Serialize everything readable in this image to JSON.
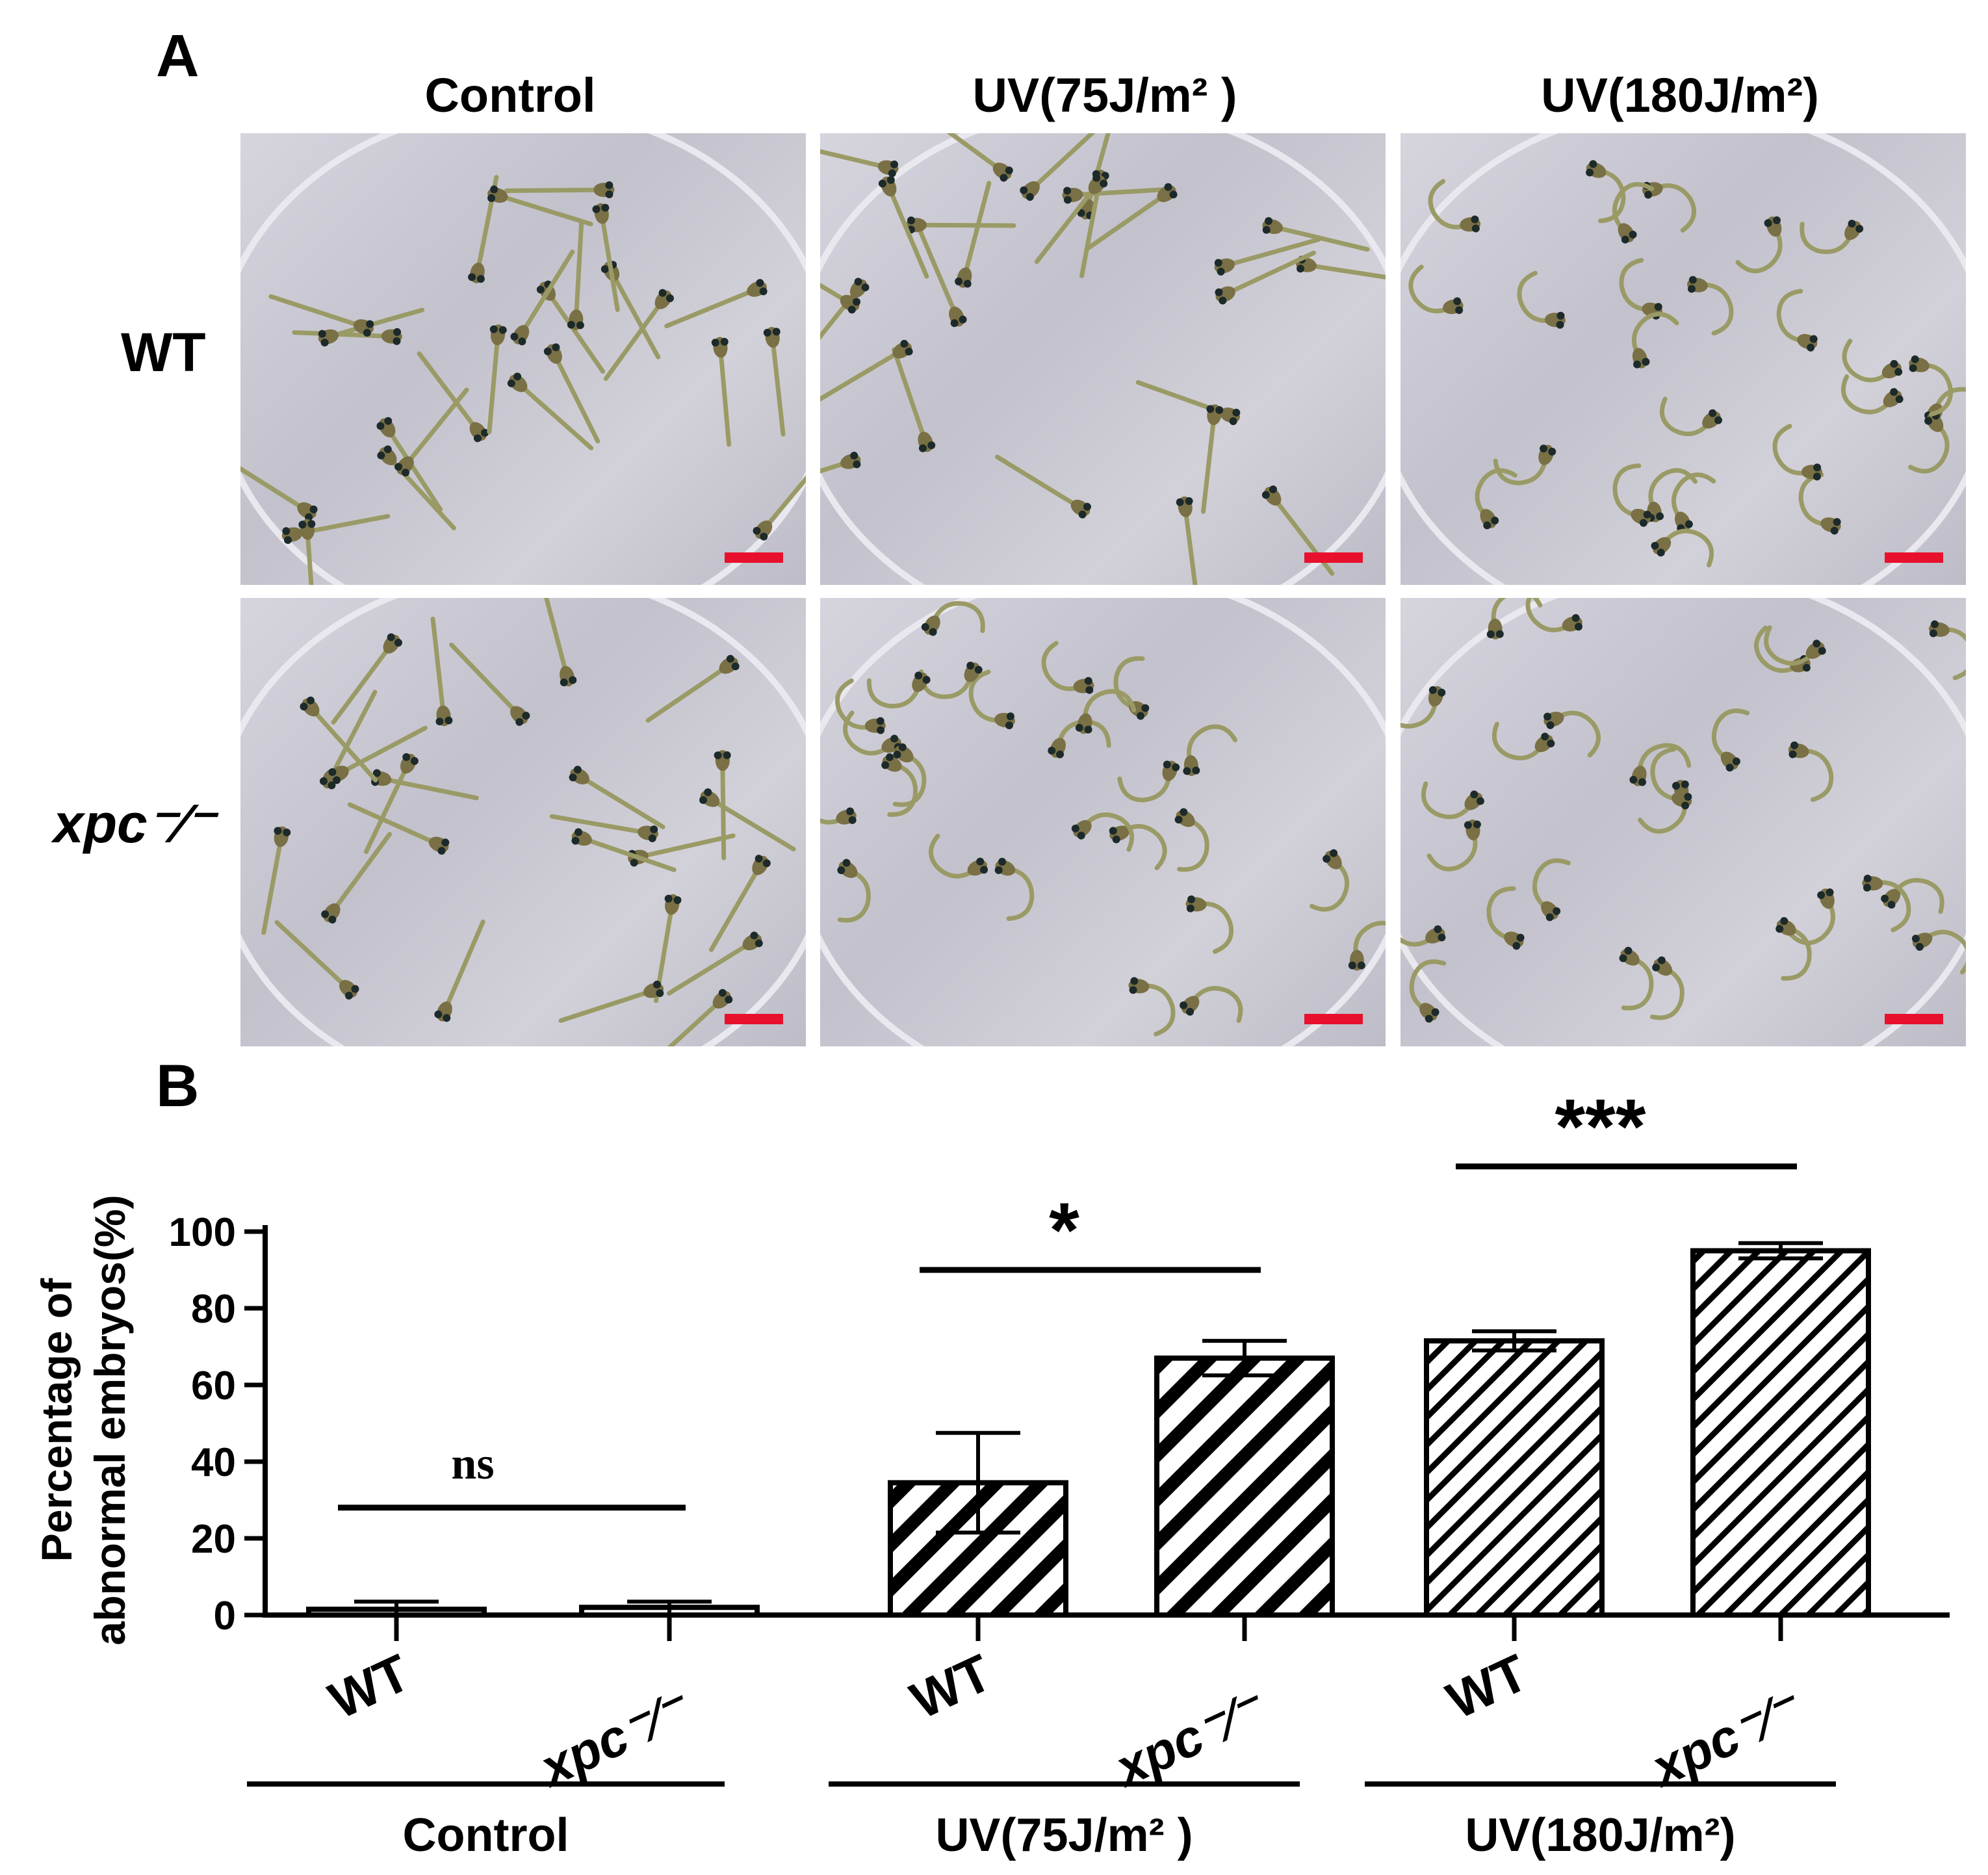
{
  "panel_a": {
    "letter": "A",
    "columns": [
      "Control",
      "UV(75J/m² )",
      "UV(180J/m²)"
    ],
    "rows": [
      {
        "label": "WT",
        "italic": false
      },
      {
        "label": "xpc⁻∕⁻",
        "italic": true
      }
    ],
    "scalebar_color": "#e8112d",
    "photo_description_kind": "zebrafish-embryo-dish"
  },
  "panel_b": {
    "letter": "B"
  },
  "chart_data": {
    "type": "bar",
    "ylabel_lines": [
      "Percentage of",
      "abnormal embryos(%)"
    ],
    "ylim": [
      0,
      100
    ],
    "yticks": [
      0,
      20,
      40,
      60,
      80,
      100
    ],
    "categories": [
      "WT",
      "xpc⁻∕⁻",
      "WT",
      "xpc⁻∕⁻",
      "WT",
      "xpc⁻∕⁻"
    ],
    "values": [
      1.5,
      2.0,
      34.5,
      67.0,
      71.5,
      95.0
    ],
    "errors": [
      2.0,
      1.5,
      13.0,
      4.5,
      2.5,
      2.0
    ],
    "hatch": [
      "none",
      "none",
      "wide",
      "wide",
      "dense",
      "dense"
    ],
    "groups": [
      {
        "label": "Control",
        "bars": [
          0,
          1
        ]
      },
      {
        "label": "UV(75J/m² )",
        "bars": [
          2,
          3
        ]
      },
      {
        "label": "UV(180J/m²)",
        "bars": [
          4,
          5
        ]
      }
    ],
    "significance": [
      {
        "label": "ns",
        "bars": [
          0,
          1
        ],
        "level": 28
      },
      {
        "label": "*",
        "bars": [
          2,
          3
        ],
        "level": 90
      },
      {
        "label": "***",
        "bars": [
          4,
          5
        ],
        "level": 117
      }
    ],
    "grid": false,
    "legend": "none"
  }
}
